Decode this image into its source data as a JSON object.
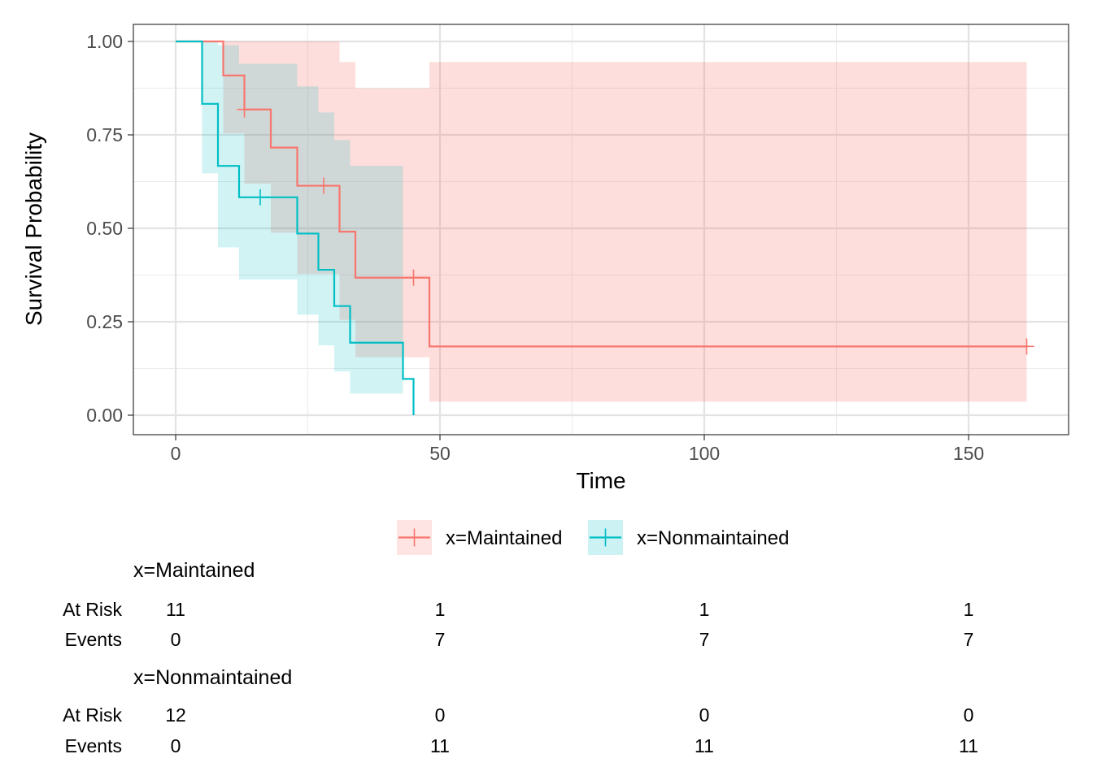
{
  "chart_data": {
    "type": "line",
    "subtype": "kaplan-meier step",
    "xlabel": "Time",
    "ylabel": "Survival Probability",
    "xlim": [
      -8,
      169
    ],
    "ylim": [
      -0.055,
      1.045
    ],
    "x_ticks": [
      0,
      50,
      100,
      150
    ],
    "x_tick_labels": [
      "0",
      "50",
      "100",
      "150"
    ],
    "y_ticks": [
      0,
      0.25,
      0.5,
      0.75,
      1
    ],
    "y_tick_labels": [
      "0.00",
      "0.25",
      "0.50",
      "0.75",
      "1.00"
    ],
    "grid": true,
    "legend_position": "bottom",
    "series": [
      {
        "name": "x=Maintained",
        "color": "#F8766D",
        "fill": "#F8766D",
        "steps": [
          {
            "x": 0,
            "y": 1.0
          },
          {
            "x": 9,
            "y": 0.909
          },
          {
            "x": 13,
            "y": 0.818
          },
          {
            "x": 18,
            "y": 0.716
          },
          {
            "x": 23,
            "y": 0.614
          },
          {
            "x": 31,
            "y": 0.491
          },
          {
            "x": 34,
            "y": 0.368
          },
          {
            "x": 48,
            "y": 0.184
          },
          {
            "x": 161,
            "y": 0.184
          }
        ],
        "ci_bands": [
          {
            "x0": 0,
            "x1": 9,
            "lower": 1.0,
            "upper": 1.0
          },
          {
            "x0": 9,
            "x1": 13,
            "lower": 0.754,
            "upper": 1.0
          },
          {
            "x0": 13,
            "x1": 18,
            "lower": 0.619,
            "upper": 1.0
          },
          {
            "x0": 18,
            "x1": 23,
            "lower": 0.488,
            "upper": 1.0
          },
          {
            "x0": 23,
            "x1": 31,
            "lower": 0.378,
            "upper": 1.0
          },
          {
            "x0": 31,
            "x1": 34,
            "lower": 0.255,
            "upper": 0.945
          },
          {
            "x0": 34,
            "x1": 48,
            "lower": 0.155,
            "upper": 0.875
          },
          {
            "x0": 48,
            "x1": 161,
            "lower": 0.036,
            "upper": 0.945
          }
        ],
        "censored": [
          {
            "x": 13,
            "y": 0.818
          },
          {
            "x": 28,
            "y": 0.614
          },
          {
            "x": 45,
            "y": 0.368
          },
          {
            "x": 161,
            "y": 0.184
          }
        ]
      },
      {
        "name": "x=Nonmaintained",
        "color": "#00BFC4",
        "fill": "#00BFC4",
        "steps": [
          {
            "x": 0,
            "y": 1.0
          },
          {
            "x": 5,
            "y": 0.833
          },
          {
            "x": 8,
            "y": 0.667
          },
          {
            "x": 12,
            "y": 0.583
          },
          {
            "x": 23,
            "y": 0.486
          },
          {
            "x": 27,
            "y": 0.389
          },
          {
            "x": 30,
            "y": 0.292
          },
          {
            "x": 33,
            "y": 0.194
          },
          {
            "x": 43,
            "y": 0.097
          },
          {
            "x": 45,
            "y": 0.0
          }
        ],
        "ci_bands": [
          {
            "x0": 0,
            "x1": 5,
            "lower": 1.0,
            "upper": 1.0
          },
          {
            "x0": 5,
            "x1": 8,
            "lower": 0.647,
            "upper": 1.0
          },
          {
            "x0": 8,
            "x1": 12,
            "lower": 0.449,
            "upper": 0.99
          },
          {
            "x0": 12,
            "x1": 23,
            "lower": 0.363,
            "upper": 0.94
          },
          {
            "x0": 23,
            "x1": 27,
            "lower": 0.269,
            "upper": 0.88
          },
          {
            "x0": 27,
            "x1": 30,
            "lower": 0.187,
            "upper": 0.81
          },
          {
            "x0": 30,
            "x1": 33,
            "lower": 0.117,
            "upper": 0.736
          },
          {
            "x0": 33,
            "x1": 43,
            "lower": 0.058,
            "upper": 0.667
          },
          {
            "x0": 43,
            "x1": 45,
            "lower": 0.0,
            "upper": 0.0
          }
        ],
        "censored": [
          {
            "x": 16,
            "y": 0.583
          }
        ]
      }
    ]
  },
  "risk_table": {
    "times": [
      0,
      50,
      100,
      150
    ],
    "row_labels": {
      "at_risk": "At Risk",
      "events": "Events"
    },
    "groups": [
      {
        "label": "x=Maintained",
        "at_risk": [
          "11",
          "1",
          "1",
          "1"
        ],
        "events": [
          "0",
          "7",
          "7",
          "7"
        ]
      },
      {
        "label": "x=Nonmaintained",
        "at_risk": [
          "12",
          "0",
          "0",
          "0"
        ],
        "events": [
          "0",
          "11",
          "11",
          "11"
        ]
      }
    ]
  }
}
